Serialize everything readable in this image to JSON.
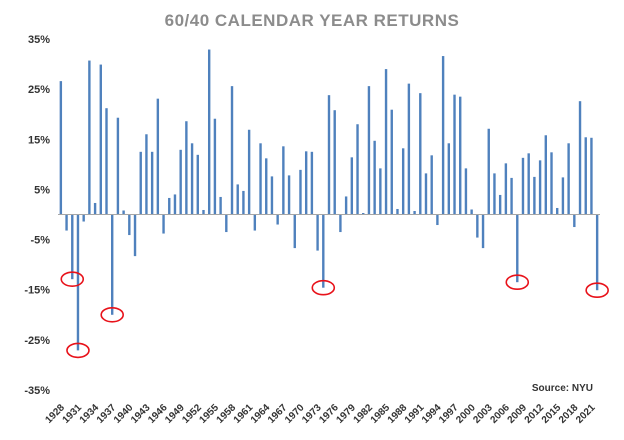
{
  "chart_data": {
    "type": "bar",
    "title": "60/40 CALENDAR YEAR RETURNS",
    "source": "Source: NYU",
    "xlabel": "",
    "ylabel": "",
    "ylim": [
      -35,
      35
    ],
    "y_ticks": [
      35,
      25,
      15,
      5,
      -5,
      -15,
      -25,
      -35
    ],
    "y_tick_labels": [
      "35%",
      "25%",
      "15%",
      "5%",
      "-5%",
      "-15%",
      "-25%",
      "-35%"
    ],
    "x_tick_labels": [
      "1928",
      "1931",
      "1934",
      "1937",
      "1940",
      "1943",
      "1946",
      "1949",
      "1952",
      "1955",
      "1958",
      "1961",
      "1964",
      "1967",
      "1970",
      "1973",
      "1976",
      "1979",
      "1982",
      "1985",
      "1988",
      "1991",
      "1994",
      "1997",
      "2000",
      "2003",
      "2006",
      "2009",
      "2012",
      "2015",
      "2018",
      "2021"
    ],
    "grid": false,
    "bar_color": "#4f81bd",
    "highlight_color": "#e8121a",
    "categories": [
      "1928",
      "1929",
      "1930",
      "1931",
      "1932",
      "1933",
      "1934",
      "1935",
      "1936",
      "1937",
      "1938",
      "1939",
      "1940",
      "1941",
      "1942",
      "1943",
      "1944",
      "1945",
      "1946",
      "1947",
      "1948",
      "1949",
      "1950",
      "1951",
      "1952",
      "1953",
      "1954",
      "1955",
      "1956",
      "1957",
      "1958",
      "1959",
      "1960",
      "1961",
      "1962",
      "1963",
      "1964",
      "1965",
      "1966",
      "1967",
      "1968",
      "1969",
      "1970",
      "1971",
      "1972",
      "1973",
      "1974",
      "1975",
      "1976",
      "1977",
      "1978",
      "1979",
      "1980",
      "1981",
      "1982",
      "1983",
      "1984",
      "1985",
      "1986",
      "1987",
      "1988",
      "1989",
      "1990",
      "1991",
      "1992",
      "1993",
      "1994",
      "1995",
      "1996",
      "1997",
      "1998",
      "1999",
      "2000",
      "2001",
      "2002",
      "2003",
      "2004",
      "2005",
      "2006",
      "2007",
      "2008",
      "2009",
      "2010",
      "2011",
      "2012",
      "2013",
      "2014",
      "2015",
      "2016",
      "2017",
      "2018",
      "2019",
      "2020",
      "2021",
      "2022"
    ],
    "values": [
      26.6,
      -3.2,
      -12.9,
      -27.1,
      -1.4,
      30.7,
      2.3,
      29.9,
      21.2,
      -20.0,
      19.3,
      0.8,
      -4.1,
      -8.3,
      12.5,
      16.0,
      12.5,
      23.1,
      -3.8,
      3.3,
      4.0,
      12.9,
      18.6,
      14.2,
      11.9,
      0.9,
      32.9,
      19.1,
      3.5,
      -3.5,
      25.6,
      6.0,
      4.7,
      16.9,
      -3.2,
      14.2,
      11.2,
      7.6,
      -2.0,
      13.6,
      7.8,
      -6.7,
      8.9,
      12.6,
      12.5,
      -7.2,
      -14.6,
      23.8,
      20.8,
      -3.5,
      3.6,
      11.4,
      18.0,
      0.3,
      25.6,
      14.7,
      9.2,
      29.0,
      20.9,
      1.1,
      13.2,
      26.1,
      0.7,
      24.2,
      8.2,
      11.8,
      -2.1,
      31.6,
      14.2,
      23.9,
      23.5,
      9.2,
      1.0,
      -4.6,
      -6.7,
      17.1,
      8.2,
      3.9,
      10.2,
      7.3,
      -13.5,
      11.3,
      12.2,
      7.5,
      10.8,
      15.8,
      12.4,
      1.3,
      7.4,
      14.2,
      -2.5,
      22.6,
      15.4,
      15.3,
      -15.1
    ],
    "highlighted_categories": [
      "1930",
      "1931",
      "1937",
      "1974",
      "2008",
      "2022"
    ]
  }
}
